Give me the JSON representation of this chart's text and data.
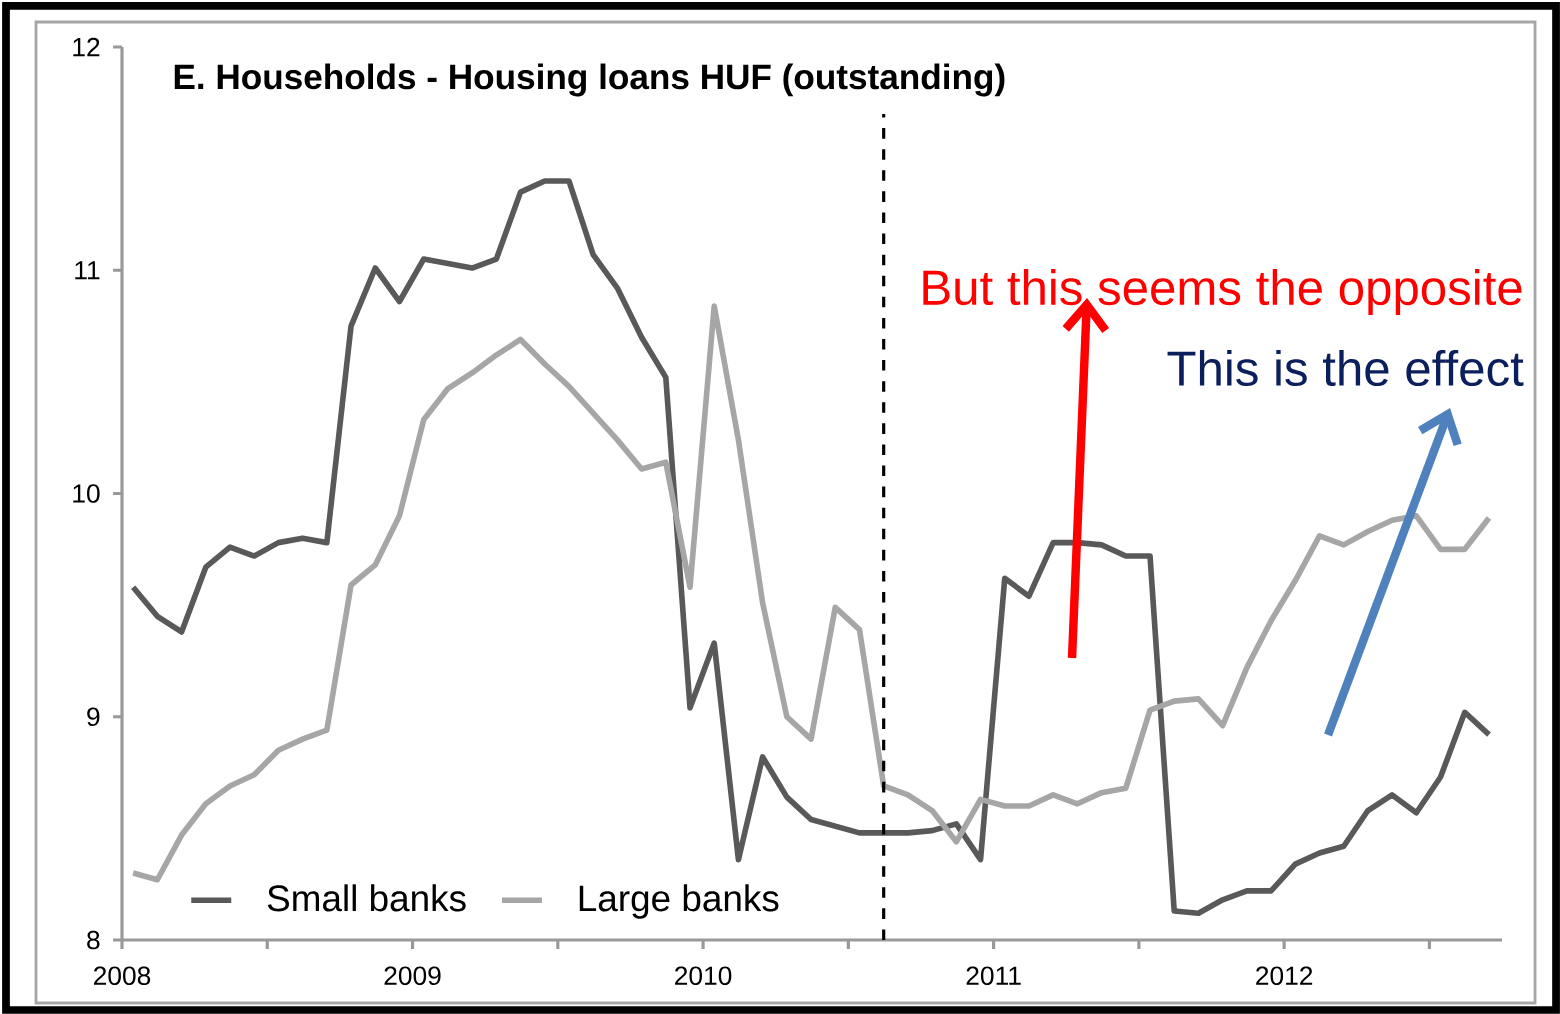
{
  "chart_data": {
    "type": "line",
    "title": "E. Households - Housing loans HUF (outstanding)",
    "x": [
      "2008-01-15",
      "2008-02-15",
      "2008-03-15",
      "2008-04-15",
      "2008-05-15",
      "2008-06-15",
      "2008-07-15",
      "2008-08-15",
      "2008-09-15",
      "2008-10-15",
      "2008-11-15",
      "2008-12-15",
      "2009-01-15",
      "2009-02-15",
      "2009-03-15",
      "2009-04-15",
      "2009-05-15",
      "2009-06-15",
      "2009-07-15",
      "2009-08-15",
      "2009-09-15",
      "2009-10-15",
      "2009-11-15",
      "2009-12-15",
      "2010-01-15",
      "2010-02-15",
      "2010-03-15",
      "2010-04-15",
      "2010-05-15",
      "2010-06-15",
      "2010-07-15",
      "2010-08-15",
      "2010-09-15",
      "2010-10-15",
      "2010-11-15",
      "2010-12-15",
      "2011-01-15",
      "2011-02-15",
      "2011-03-15",
      "2011-04-15",
      "2011-05-15",
      "2011-06-15",
      "2011-07-15",
      "2011-08-15",
      "2011-09-15",
      "2011-10-15",
      "2011-11-15",
      "2011-12-15",
      "2012-01-15",
      "2012-02-15",
      "2012-03-15",
      "2012-04-15",
      "2012-05-15",
      "2012-06-15",
      "2012-07-15",
      "2012-08-15",
      "2012-09-15"
    ],
    "series": [
      {
        "name": "Small banks",
        "color": "#595959",
        "values": [
          9.58,
          9.45,
          9.38,
          9.67,
          9.76,
          9.72,
          9.78,
          9.8,
          9.78,
          10.75,
          11.01,
          10.86,
          11.05,
          11.03,
          11.01,
          11.05,
          11.35,
          11.4,
          11.4,
          11.07,
          10.92,
          10.7,
          10.52,
          9.04,
          9.33,
          8.36,
          8.82,
          8.64,
          8.54,
          8.51,
          8.48,
          8.48,
          8.48,
          8.49,
          8.52,
          8.36,
          9.62,
          9.54,
          9.78,
          9.78,
          9.77,
          9.72,
          9.72,
          8.13,
          8.12,
          8.18,
          8.22,
          8.22,
          8.34,
          8.39,
          8.42,
          8.58,
          8.65,
          8.57,
          8.73,
          9.02,
          8.92
        ]
      },
      {
        "name": "Large banks",
        "color": "#a6a6a6",
        "values": [
          8.3,
          8.27,
          8.47,
          8.61,
          8.69,
          8.74,
          8.85,
          8.9,
          8.94,
          9.59,
          9.68,
          9.9,
          10.33,
          10.47,
          10.54,
          10.62,
          10.69,
          10.58,
          10.48,
          10.36,
          10.24,
          10.11,
          10.14,
          9.58,
          10.84,
          10.24,
          9.51,
          9.0,
          8.9,
          9.49,
          9.39,
          8.69,
          8.65,
          8.58,
          8.44,
          8.63,
          8.6,
          8.6,
          8.65,
          8.61,
          8.66,
          8.68,
          9.03,
          9.07,
          9.08,
          8.96,
          9.22,
          9.43,
          9.61,
          9.81,
          9.77,
          9.83,
          9.88,
          9.9,
          9.75,
          9.75,
          9.89
        ]
      }
    ],
    "xlim": [
      "2008-01",
      "2012-10"
    ],
    "xticks": [
      {
        "value": "2008-01",
        "label": "2008"
      },
      {
        "value": "2008-07",
        "label": null
      },
      {
        "value": "2009-01",
        "label": "2009"
      },
      {
        "value": "2009-07",
        "label": null
      },
      {
        "value": "2010-01",
        "label": "2010"
      },
      {
        "value": "2010-07",
        "label": null
      },
      {
        "value": "2011-01",
        "label": "2011"
      },
      {
        "value": "2011-07",
        "label": null
      },
      {
        "value": "2012-01",
        "label": "2012"
      },
      {
        "value": "2012-07",
        "label": null
      }
    ],
    "ylim": [
      8,
      12
    ],
    "yticks": [
      8,
      9,
      10,
      11,
      12
    ],
    "ref_lines": [
      {
        "axis": "x",
        "value": "2010-08-15",
        "color": "#000000",
        "line_style": "dashed"
      }
    ],
    "legend": "bottom left",
    "annotations": [
      "But this seems the opposite",
      "This is the effect"
    ]
  }
}
